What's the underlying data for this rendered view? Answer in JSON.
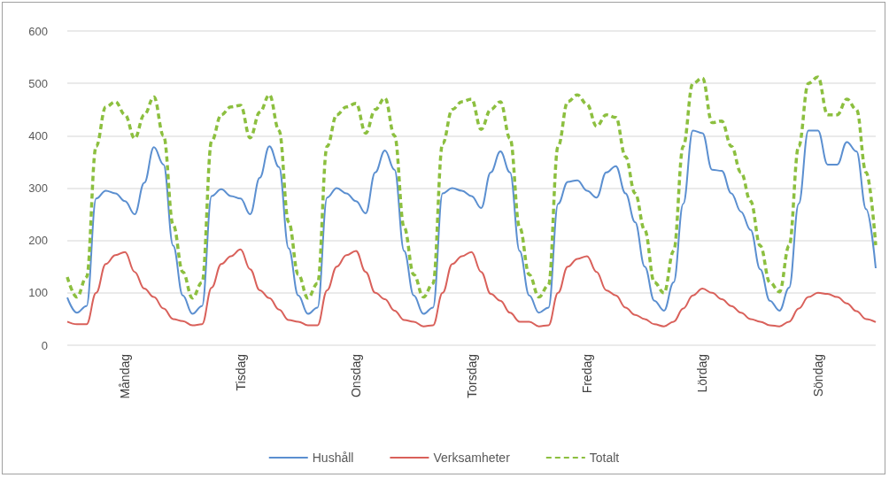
{
  "chart_data": {
    "type": "line",
    "categories": [
      null,
      null,
      null,
      null,
      null,
      null,
      "Måndag",
      null,
      null,
      null,
      null,
      null,
      null,
      null,
      null,
      null,
      null,
      null,
      "Tisdag",
      null,
      null,
      null,
      null,
      null,
      null,
      null,
      null,
      null,
      null,
      null,
      "Onsdag",
      null,
      null,
      null,
      null,
      null,
      null,
      null,
      null,
      null,
      null,
      null,
      "Torsdag",
      null,
      null,
      null,
      null,
      null,
      null,
      null,
      null,
      null,
      null,
      null,
      "Fredag",
      null,
      null,
      null,
      null,
      null,
      null,
      null,
      null,
      null,
      null,
      null,
      "Lördag",
      null,
      null,
      null,
      null,
      null,
      null,
      null,
      null,
      null,
      null,
      null,
      "Söndag",
      null,
      null,
      null,
      null,
      null,
      null
    ],
    "series": [
      {
        "name": "Hushåll",
        "color": "#5b8fd0",
        "line_style": "solid",
        "values": [
          91,
          62,
          75,
          280,
          295,
          290,
          275,
          250,
          310,
          378,
          345,
          190,
          95,
          60,
          75,
          285,
          298,
          285,
          280,
          250,
          320,
          380,
          340,
          185,
          95,
          60,
          72,
          282,
          300,
          290,
          275,
          252,
          330,
          372,
          335,
          180,
          95,
          60,
          72,
          290,
          300,
          295,
          285,
          262,
          330,
          370,
          330,
          180,
          95,
          62,
          72,
          270,
          312,
          315,
          295,
          282,
          330,
          342,
          290,
          235,
          150,
          85,
          66,
          120,
          270,
          410,
          405,
          335,
          333,
          290,
          255,
          220,
          145,
          85,
          66,
          110,
          270,
          410,
          410,
          345,
          345,
          388,
          370,
          260,
          147
        ]
      },
      {
        "name": "Verksamheter",
        "color": "#d9605a",
        "line_style": "solid",
        "values": [
          45,
          40,
          40,
          100,
          155,
          172,
          178,
          140,
          108,
          92,
          70,
          50,
          46,
          38,
          40,
          110,
          155,
          170,
          183,
          145,
          105,
          90,
          68,
          48,
          45,
          38,
          38,
          105,
          150,
          172,
          180,
          140,
          100,
          88,
          66,
          48,
          45,
          36,
          38,
          100,
          155,
          170,
          178,
          140,
          98,
          85,
          62,
          45,
          45,
          36,
          38,
          100,
          150,
          165,
          170,
          140,
          105,
          95,
          72,
          58,
          50,
          40,
          36,
          45,
          70,
          95,
          108,
          100,
          88,
          75,
          62,
          50,
          45,
          38,
          36,
          45,
          70,
          92,
          100,
          98,
          92,
          80,
          65,
          50,
          44
        ]
      },
      {
        "name": "Totalt",
        "color": "#8cbf3f",
        "line_style": "dashed",
        "values": [
          130,
          92,
          130,
          380,
          455,
          465,
          440,
          395,
          440,
          474,
          400,
          230,
          140,
          90,
          120,
          390,
          440,
          455,
          458,
          396,
          445,
          478,
          410,
          235,
          135,
          90,
          118,
          380,
          440,
          455,
          462,
          405,
          450,
          472,
          400,
          225,
          135,
          92,
          118,
          385,
          450,
          465,
          470,
          412,
          450,
          465,
          395,
          225,
          135,
          92,
          115,
          380,
          465,
          478,
          460,
          418,
          440,
          435,
          360,
          290,
          220,
          120,
          100,
          180,
          380,
          500,
          510,
          425,
          428,
          380,
          330,
          275,
          190,
          120,
          102,
          190,
          380,
          500,
          512,
          440,
          440,
          470,
          450,
          330,
          191
        ]
      }
    ],
    "ylim": [
      0,
      600
    ],
    "yticks": [
      0,
      100,
      200,
      300,
      400,
      500,
      600
    ],
    "grid": "y",
    "legend": "bottom",
    "marker": "none"
  }
}
